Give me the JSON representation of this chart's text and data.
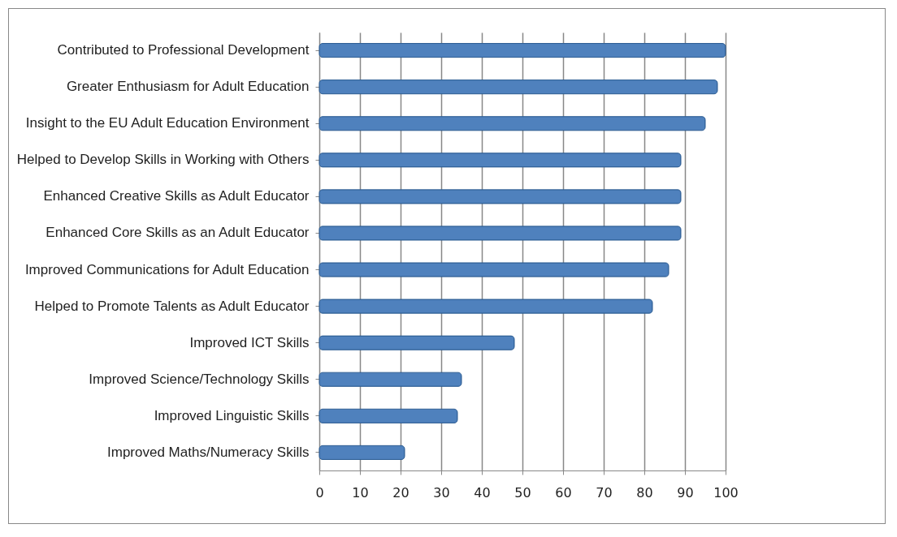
{
  "chart_data": {
    "type": "bar",
    "orientation": "horizontal",
    "categories": [
      "Contributed to Professional Development",
      "Greater Enthusiasm for Adult Education",
      "Insight to the EU Adult Education Environment",
      "Helped to Develop Skills in Working with Others",
      "Enhanced Creative Skills as Adult Educator",
      "Enhanced Core Skills as an Adult Educator",
      "Improved Communications for Adult Education",
      "Helped to Promote Talents as Adult Educator",
      "Improved ICT Skills",
      "Improved Science/Technology Skills",
      "Improved Linguistic Skills",
      "Improved Maths/Numeracy Skills"
    ],
    "values": [
      100,
      98,
      95,
      89,
      89,
      89,
      86,
      82,
      48,
      35,
      34,
      21
    ],
    "color": "#4f81bd",
    "xlim": [
      0,
      100
    ],
    "xticks": [
      0,
      10,
      20,
      30,
      40,
      50,
      60,
      70,
      80,
      90,
      100
    ],
    "grid": "x"
  }
}
